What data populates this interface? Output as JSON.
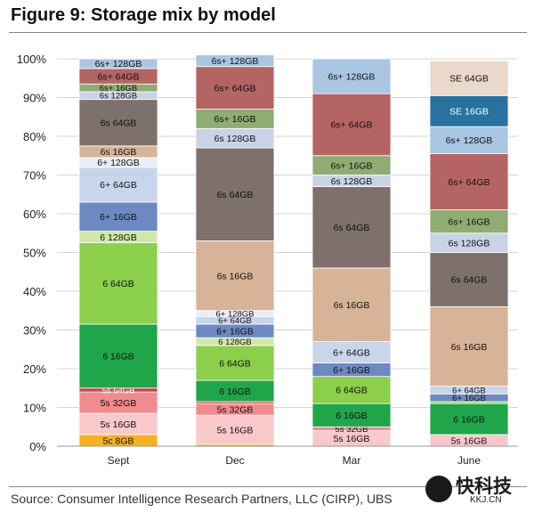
{
  "page": {
    "title": "Figure 9: Storage mix by model",
    "source": "Source:  Consumer Intelligence Research Partners, LLC (CIRP), UBS"
  },
  "watermark": {
    "text": "快科技",
    "url": "KKJ.CN"
  },
  "chart_data": {
    "type": "bar",
    "stacked": true,
    "title": "Figure 9: Storage mix by model",
    "categories": [
      "Sept",
      "Dec",
      "Mar",
      "June"
    ],
    "ylim": [
      0,
      100
    ],
    "yticks": [
      "0%",
      "10%",
      "20%",
      "30%",
      "40%",
      "50%",
      "60%",
      "70%",
      "80%",
      "90%",
      "100%"
    ],
    "ytick_values": [
      0,
      10,
      20,
      30,
      40,
      50,
      60,
      70,
      80,
      90,
      100
    ],
    "xlabel": "",
    "ylabel": "",
    "grid": "horizontal",
    "colors": {
      "5c 8GB": "#f5b21d",
      "5s 16GB": "#f9c8cb",
      "5s 32GB": "#f28b8e",
      "5s 64GB": "#d93b3f",
      "6 16GB": "#1fa64a",
      "6 64GB": "#8bcf4b",
      "6 128GB": "#d0e8a6",
      "6+ 16GB": "#6c89c2",
      "6+ 64GB": "#c9d5ea",
      "6+ 128GB": "#e7eef8",
      "6s 16GB": "#d7b397",
      "6s 64GB": "#7e716b",
      "6s 128GB": "#c8d3e6",
      "6s+ 16GB": "#8fac72",
      "6s+ 64GB": "#b56464",
      "6s+ 128GB": "#a9c6e3",
      "SE 16GB": "#2872a0",
      "SE 64GB": "#ead8ca"
    },
    "series_per_category": [
      {
        "category": "Sept",
        "segments": [
          {
            "name": "5c 8GB",
            "value": 3
          },
          {
            "name": "5s 16GB",
            "value": 5.5
          },
          {
            "name": "5s 32GB",
            "value": 5.5
          },
          {
            "name": "5s 64GB",
            "value": 1
          },
          {
            "name": "6 16GB",
            "value": 16.5
          },
          {
            "name": "6 64GB",
            "value": 21
          },
          {
            "name": "6 128GB",
            "value": 3
          },
          {
            "name": "6+ 16GB",
            "value": 7.5
          },
          {
            "name": "6+ 64GB",
            "value": 9
          },
          {
            "name": "6+ 128GB",
            "value": 2.5
          },
          {
            "name": "6s 16GB",
            "value": 3
          },
          {
            "name": "6s 64GB",
            "value": 12
          },
          {
            "name": "6s 128GB",
            "value": 2
          },
          {
            "name": "6s+ 16GB",
            "value": 2
          },
          {
            "name": "6s+ 64GB",
            "value": 4
          },
          {
            "name": "6s+ 128GB",
            "value": 2.5
          }
        ]
      },
      {
        "category": "Dec",
        "segments": [
          {
            "name": "5c 8GB",
            "value": 0.5
          },
          {
            "name": "5s 16GB",
            "value": 7.5
          },
          {
            "name": "5s 32GB",
            "value": 3
          },
          {
            "name": "5s 64GB",
            "value": 0.5
          },
          {
            "name": "6 16GB",
            "value": 5.5
          },
          {
            "name": "6 64GB",
            "value": 9
          },
          {
            "name": "6 128GB",
            "value": 2
          },
          {
            "name": "6+ 16GB",
            "value": 3.5
          },
          {
            "name": "6+ 64GB",
            "value": 2
          },
          {
            "name": "6+ 128GB",
            "value": 1.5
          },
          {
            "name": "6s 16GB",
            "value": 18
          },
          {
            "name": "6s 64GB",
            "value": 24
          },
          {
            "name": "6s 128GB",
            "value": 5
          },
          {
            "name": "6s+ 16GB",
            "value": 5
          },
          {
            "name": "6s+ 64GB",
            "value": 11
          },
          {
            "name": "6s+ 128GB",
            "value": 3
          }
        ]
      },
      {
        "category": "Mar",
        "segments": [
          {
            "name": "5s 16GB",
            "value": 4
          },
          {
            "name": "5s 32GB",
            "value": 1
          },
          {
            "name": "6 16GB",
            "value": 6
          },
          {
            "name": "6 64GB",
            "value": 7
          },
          {
            "name": "6+ 16GB",
            "value": 3.5
          },
          {
            "name": "6+ 64GB",
            "value": 5.5
          },
          {
            "name": "6s 16GB",
            "value": 19
          },
          {
            "name": "6s 64GB",
            "value": 21
          },
          {
            "name": "6s 128GB",
            "value": 3
          },
          {
            "name": "6s+ 16GB",
            "value": 5
          },
          {
            "name": "6s+ 64GB",
            "value": 16
          },
          {
            "name": "6s+ 128GB",
            "value": 9
          }
        ]
      },
      {
        "category": "June",
        "segments": [
          {
            "name": "5s 16GB",
            "value": 3
          },
          {
            "name": "6 16GB",
            "value": 8
          },
          {
            "name": "6 64GB",
            "value": 0.5
          },
          {
            "name": "6+ 16GB",
            "value": 2
          },
          {
            "name": "6+ 64GB",
            "value": 2
          },
          {
            "name": "6s 16GB",
            "value": 20.5
          },
          {
            "name": "6s 64GB",
            "value": 14
          },
          {
            "name": "6s 128GB",
            "value": 5
          },
          {
            "name": "6s+ 16GB",
            "value": 6
          },
          {
            "name": "6s+ 64GB",
            "value": 14.5
          },
          {
            "name": "6s+ 128GB",
            "value": 7
          },
          {
            "name": "SE 16GB",
            "value": 8
          },
          {
            "name": "SE 64GB",
            "value": 9
          }
        ]
      }
    ]
  }
}
